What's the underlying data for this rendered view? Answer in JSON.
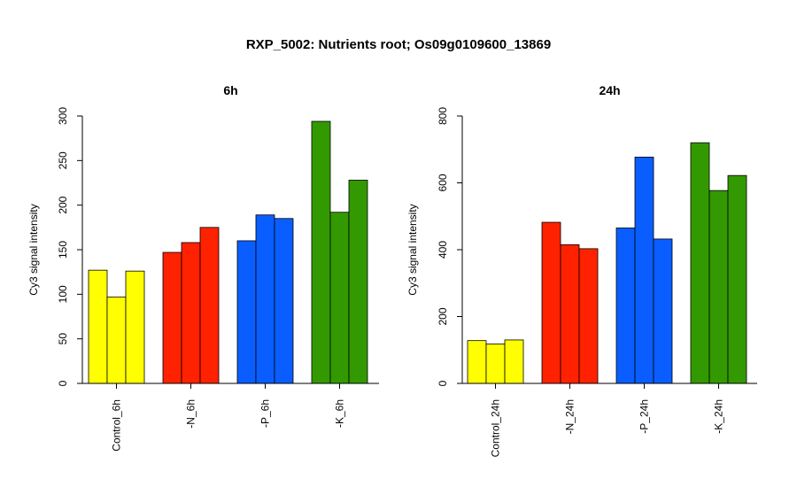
{
  "chart_data": {
    "type": "bar",
    "title": "RXP_5002: Nutrients root; Os09g0109600_13869",
    "panels": [
      {
        "title": "6h",
        "ylabel": "Cy3 signal intensity",
        "ylim": [
          0,
          300
        ],
        "yticks": [
          0,
          50,
          100,
          150,
          200,
          250,
          300
        ],
        "groups": [
          {
            "label": "Control_6h",
            "color": "#FFFF00",
            "values": [
              127,
              97,
              126
            ]
          },
          {
            "label": "-N_6h",
            "color": "#FF2200",
            "values": [
              147,
              158,
              175
            ]
          },
          {
            "label": "-P_6h",
            "color": "#0A5EFF",
            "values": [
              160,
              189,
              185
            ]
          },
          {
            "label": "-K_6h",
            "color": "#339900",
            "values": [
              294,
              192,
              228
            ]
          }
        ]
      },
      {
        "title": "24h",
        "ylabel": "Cy3 signal intensity",
        "ylim": [
          0,
          800
        ],
        "yticks": [
          0,
          200,
          400,
          600,
          800
        ],
        "groups": [
          {
            "label": "Control_24h",
            "color": "#FFFF00",
            "values": [
              128,
              118,
              130
            ]
          },
          {
            "label": "-N_24h",
            "color": "#FF2200",
            "values": [
              482,
              415,
              403
            ]
          },
          {
            "label": "-P_24h",
            "color": "#0A5EFF",
            "values": [
              465,
              677,
              432
            ]
          },
          {
            "label": "-K_24h",
            "color": "#339900",
            "values": [
              720,
              577,
              622
            ]
          }
        ]
      }
    ]
  }
}
